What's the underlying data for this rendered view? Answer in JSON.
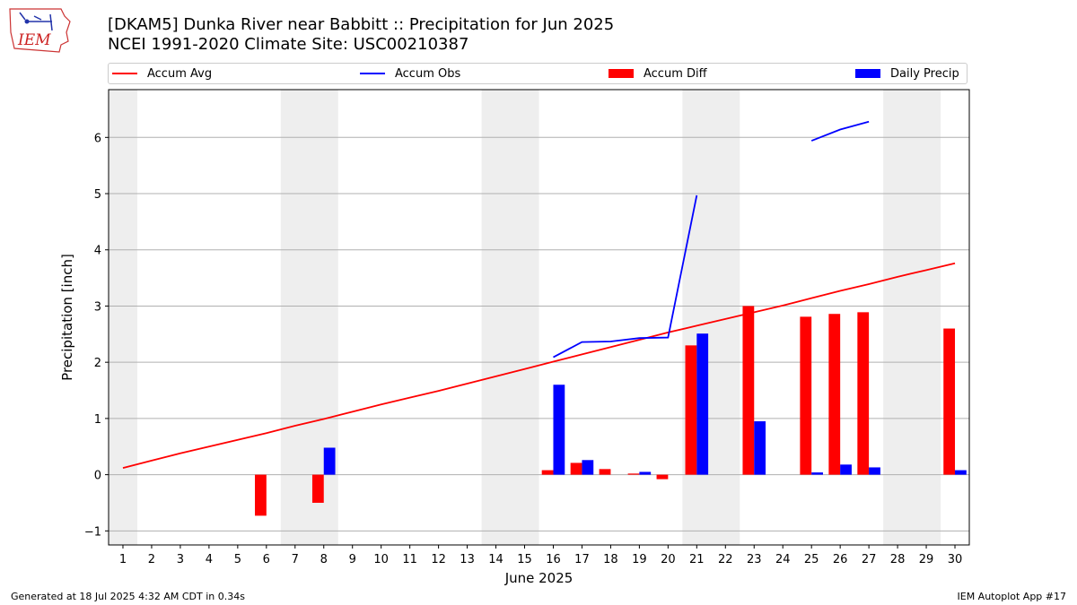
{
  "header": {
    "logo_text": "IEM",
    "title_line1": "[DKAM5] Dunka River near Babbitt :: Precipitation for Jun 2025",
    "title_line2": "NCEI 1991-2020 Climate Site: USC00210387"
  },
  "legend": {
    "accum_avg": "Accum Avg",
    "accum_obs": "Accum Obs",
    "accum_diff": "Accum Diff",
    "daily_precip": "Daily Precip"
  },
  "footer": {
    "generated": "Generated at 18 Jul 2025 4:32 AM CDT in 0.34s",
    "app": "IEM Autoplot App #17"
  },
  "colors": {
    "accum_avg": "#ff0000",
    "accum_obs": "#0000ff",
    "accum_diff": "#ff0000",
    "daily_precip": "#0000ff",
    "weekend_shade": "#eeeeee",
    "grid": "#b0b0b0"
  },
  "chart_data": {
    "type": "bar",
    "xlabel": "June 2025",
    "ylabel": "Precipitation [inch]",
    "xlim": [
      0.5,
      30.5
    ],
    "ylim": [
      -1.25,
      6.85
    ],
    "yticks": [
      -1,
      0,
      1,
      2,
      3,
      4,
      5,
      6
    ],
    "categories": [
      "1",
      "2",
      "3",
      "4",
      "5",
      "6",
      "7",
      "8",
      "9",
      "10",
      "11",
      "12",
      "13",
      "14",
      "15",
      "16",
      "17",
      "18",
      "19",
      "20",
      "21",
      "22",
      "23",
      "24",
      "25",
      "26",
      "27",
      "28",
      "29",
      "30"
    ],
    "grid": "horizontal",
    "legend_position": "top",
    "shaded_days": [
      [
        0.5,
        1.5
      ],
      [
        6.5,
        8.5
      ],
      [
        13.5,
        15.5
      ],
      [
        20.5,
        22.5
      ],
      [
        27.5,
        29.5
      ]
    ],
    "series": [
      {
        "name": "Accum Avg",
        "type": "line",
        "values": [
          0.12,
          0.25,
          0.38,
          0.5,
          0.62,
          0.74,
          0.87,
          0.99,
          1.12,
          1.25,
          1.37,
          1.49,
          1.62,
          1.75,
          1.88,
          2.01,
          2.14,
          2.27,
          2.4,
          2.53,
          2.65,
          2.77,
          2.89,
          3.01,
          3.14,
          3.27,
          3.39,
          3.52,
          3.64,
          3.76
        ]
      },
      {
        "name": "Accum Obs",
        "type": "line",
        "values": [
          null,
          null,
          null,
          null,
          null,
          null,
          null,
          null,
          null,
          null,
          null,
          null,
          null,
          null,
          null,
          2.09,
          2.36,
          2.37,
          2.43,
          2.44,
          4.97,
          null,
          null,
          null,
          5.94,
          6.14,
          6.28,
          null,
          null,
          null
        ]
      },
      {
        "name": "Accum Diff",
        "type": "bar",
        "values": [
          null,
          null,
          null,
          null,
          null,
          -0.73,
          null,
          -0.5,
          null,
          null,
          null,
          null,
          null,
          null,
          null,
          0.08,
          0.21,
          0.1,
          0.02,
          -0.08,
          2.3,
          null,
          3.0,
          null,
          2.81,
          2.86,
          2.89,
          null,
          null,
          2.6
        ]
      },
      {
        "name": "Daily Precip",
        "type": "bar",
        "values": [
          null,
          null,
          null,
          null,
          null,
          null,
          null,
          0.48,
          null,
          null,
          null,
          null,
          null,
          null,
          null,
          1.6,
          0.26,
          null,
          0.05,
          null,
          2.51,
          null,
          0.95,
          null,
          0.04,
          0.18,
          0.13,
          null,
          null,
          0.08
        ]
      }
    ]
  }
}
